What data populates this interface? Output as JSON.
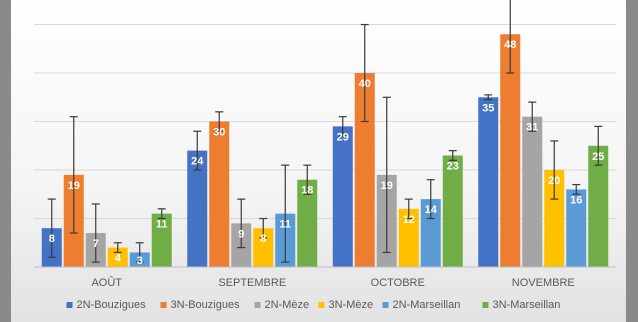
{
  "chart_data": {
    "type": "bar",
    "categories": [
      "AOÛT",
      "SEPTEMBRE",
      "OCTOBRE",
      "NOVEMBRE"
    ],
    "series": [
      {
        "name": "2N-Bouzigues",
        "color": "#4472c4",
        "values": [
          8,
          24,
          29,
          35
        ],
        "error": [
          6,
          4,
          2,
          0.5
        ]
      },
      {
        "name": "3N-Bouzigues",
        "color": "#ed7d31",
        "values": [
          19,
          30,
          40,
          48
        ],
        "error": [
          12,
          2,
          10,
          8
        ]
      },
      {
        "name": "2N-Mèze",
        "color": "#a5a5a5",
        "values": [
          7,
          9,
          19,
          31
        ],
        "error": [
          6,
          5,
          16,
          3
        ]
      },
      {
        "name": "3N-Mèze",
        "color": "#ffc000",
        "values": [
          4,
          8,
          12,
          20
        ],
        "error": [
          1,
          2,
          2,
          6
        ]
      },
      {
        "name": "2N-Marseillan",
        "color": "#5b9bd5",
        "values": [
          3,
          11,
          14,
          16
        ],
        "error": [
          2,
          10,
          4,
          1
        ]
      },
      {
        "name": "3N-Marseillan",
        "color": "#70ad47",
        "values": [
          11,
          18,
          23,
          25
        ],
        "error": [
          1,
          3,
          1,
          4
        ]
      }
    ],
    "ylim": [
      0,
      53
    ],
    "grid": true,
    "legend": "bottom",
    "data_labels": true
  }
}
